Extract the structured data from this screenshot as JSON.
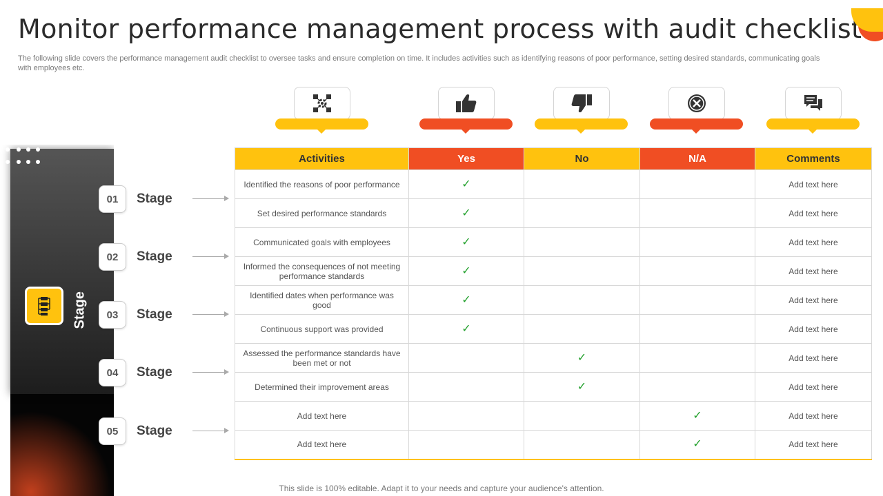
{
  "title": "Monitor performance management process with audit checklist",
  "subtitle": "The following slide covers the performance management audit checklist to oversee tasks and ensure completion on time. It includes activities such as identifying reasons of poor performance, setting desired standards, communicating goals with employees etc.",
  "side_label": "Stage",
  "stages": [
    {
      "num": "01",
      "label": "Stage"
    },
    {
      "num": "02",
      "label": "Stage"
    },
    {
      "num": "03",
      "label": "Stage"
    },
    {
      "num": "04",
      "label": "Stage"
    },
    {
      "num": "05",
      "label": "Stage"
    }
  ],
  "header_icons": [
    "network-gear-icon",
    "thumbs-up-icon",
    "thumbs-down-icon",
    "close-circle-icon",
    "chat-comments-icon"
  ],
  "table": {
    "headers": [
      "Activities",
      "Yes",
      "No",
      "N/A",
      "Comments"
    ],
    "rows": [
      {
        "activity": "Identified the reasons of poor performance",
        "status": "yes",
        "comment": "Add text here"
      },
      {
        "activity": "Set desired performance standards",
        "status": "yes",
        "comment": "Add text here"
      },
      {
        "activity": "Communicated goals with employees",
        "status": "yes",
        "comment": "Add text here"
      },
      {
        "activity": "Informed the consequences of not meeting performance standards",
        "status": "yes",
        "comment": "Add text here"
      },
      {
        "activity": "Identified dates when performance was good",
        "status": "yes",
        "comment": "Add text here"
      },
      {
        "activity": "Continuous support was provided",
        "status": "yes",
        "comment": "Add text here"
      },
      {
        "activity": "Assessed the performance standards have been met or not",
        "status": "no",
        "comment": "Add text here"
      },
      {
        "activity": "Determined their improvement areas",
        "status": "no",
        "comment": "Add text here"
      },
      {
        "activity": "Add text here",
        "status": "na",
        "comment": "Add text here"
      },
      {
        "activity": "Add text here",
        "status": "na",
        "comment": "Add text here"
      }
    ],
    "check_mark": "✓"
  },
  "footer": "This slide is 100% editable. Adapt it to your needs and capture your audience's attention.",
  "colors": {
    "yellow": "#ffc20e",
    "orange": "#f04e23",
    "check": "#22a02c",
    "dark": "#1d1d1d"
  }
}
